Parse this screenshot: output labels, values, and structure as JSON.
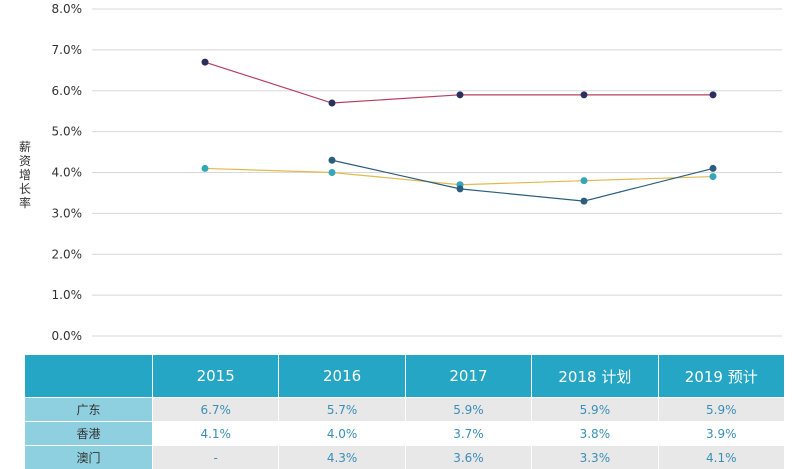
{
  "chart_data": {
    "type": "line",
    "ylabel": "薪资增长率",
    "ylim": [
      0,
      8
    ],
    "yticks": [
      "0.0%",
      "1.0%",
      "2.0%",
      "3.0%",
      "4.0%",
      "5.0%",
      "6.0%",
      "7.0%",
      "8.0%"
    ],
    "categories": [
      "2015",
      "2016",
      "2017",
      "2018 计划",
      "2019 预计"
    ],
    "grid": true,
    "series": [
      {
        "name": "广东",
        "values": [
          6.7,
          5.7,
          5.9,
          5.9,
          5.9
        ],
        "line_color": "#b5405e",
        "point_color": "#2b2f5e"
      },
      {
        "name": "香港",
        "values": [
          4.1,
          4.0,
          3.7,
          3.8,
          3.9
        ],
        "line_color": "#e2b94e",
        "point_color": "#33a6b8"
      },
      {
        "name": "澳门",
        "values": [
          null,
          4.3,
          3.6,
          3.3,
          4.1
        ],
        "line_color": "#2b5e7e",
        "point_color": "#2b5e7e"
      }
    ]
  },
  "table": {
    "headers": [
      "2015",
      "2016",
      "2017",
      "2018 计划",
      "2019 预计"
    ],
    "rows": [
      {
        "label": "广东",
        "cells": [
          "6.7%",
          "5.7%",
          "5.9%",
          "5.9%",
          "5.9%"
        ]
      },
      {
        "label": "香港",
        "cells": [
          "4.1%",
          "4.0%",
          "3.7%",
          "3.8%",
          "3.9%"
        ]
      },
      {
        "label": "澳门",
        "cells": [
          "-",
          "4.3%",
          "3.6%",
          "3.3%",
          "4.1%"
        ]
      }
    ]
  }
}
